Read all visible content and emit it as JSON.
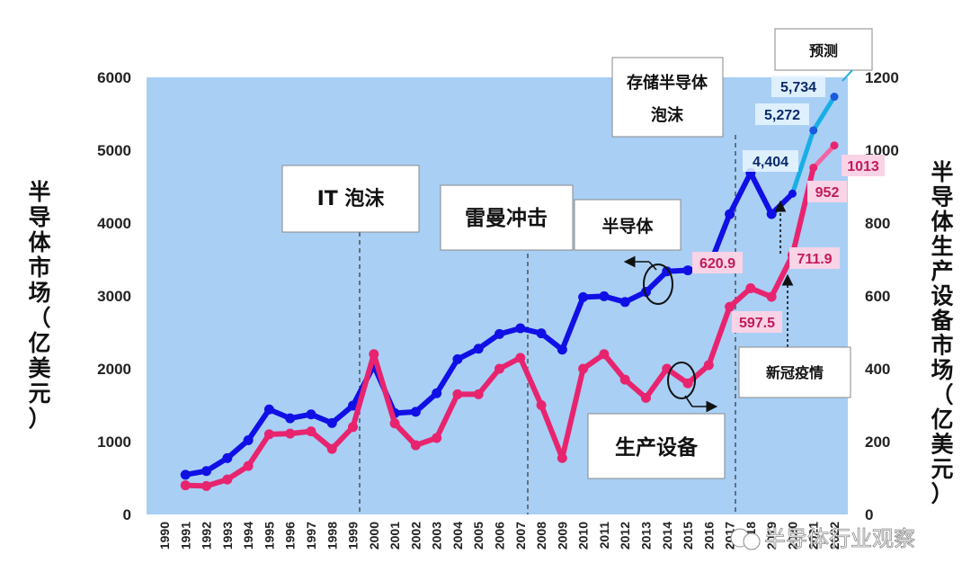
{
  "chart_data": {
    "type": "line",
    "x": [
      1991,
      1992,
      1993,
      1994,
      1995,
      1996,
      1997,
      1998,
      1999,
      2000,
      2001,
      2002,
      2003,
      2004,
      2005,
      2006,
      2007,
      2008,
      2009,
      2010,
      2011,
      2012,
      2013,
      2014,
      2015,
      2016,
      2017,
      2018,
      2019,
      2020,
      2021,
      2022
    ],
    "x_tick_labels": [
      "1990",
      "1991",
      "1992",
      "1993",
      "1994",
      "1995",
      "1996",
      "1997",
      "1998",
      "1999",
      "2000",
      "2001",
      "2002",
      "2003",
      "2004",
      "2005",
      "2006",
      "2007",
      "2008",
      "2009",
      "2010",
      "2011",
      "2012",
      "2013",
      "2014",
      "2015",
      "2016",
      "2017",
      "2018",
      "2019",
      "2020",
      "2021",
      "2022"
    ],
    "series": [
      {
        "name": "半导体",
        "axis": "left",
        "color": "#1010e6",
        "values": [
          545,
          596,
          773,
          1019,
          1441,
          1320,
          1374,
          1255,
          1494,
          2044,
          1390,
          1409,
          1663,
          2131,
          2275,
          2477,
          2555,
          2486,
          2263,
          2983,
          2995,
          2916,
          3056,
          3336,
          3351,
          3389,
          4122,
          4688,
          4123,
          4404,
          5272,
          5734
        ],
        "forecast_from_index": 29,
        "forecast_color": "#19aee6"
      },
      {
        "name": "生产设备",
        "axis": "right",
        "color": "#e8246f",
        "values": [
          80,
          78,
          96,
          133,
          220,
          222,
          228,
          180,
          240,
          440,
          250,
          190,
          210,
          330,
          330,
          400,
          430,
          300,
          155,
          400,
          440,
          370,
          320,
          400,
          360,
          410,
          570,
          620.9,
          597.5,
          711.9,
          952,
          1013
        ],
        "forecast_from_index": 30,
        "forecast_color": "#f265a5"
      }
    ],
    "y_left": {
      "label": "半导体市场（亿美元）",
      "ticks": [
        "0",
        "1000",
        "2000",
        "3000",
        "4000",
        "5000",
        "6000"
      ],
      "ylim": [
        0,
        6000
      ]
    },
    "y_right": {
      "label": "半导体生产设备市场（亿美元）",
      "ticks": [
        "0",
        "200",
        "400",
        "600",
        "800",
        "1000",
        "1200"
      ],
      "ylim": [
        0,
        1200
      ]
    },
    "annotations": {
      "it_bubble": "IT 泡沫",
      "lehman_shock": "雷曼冲击",
      "semiconductor": "半导体",
      "memory_bubble_line1": "存储半导体",
      "memory_bubble_line2": "泡沫",
      "forecast": "预测",
      "covid": "新冠疫情",
      "equipment": "生产设备"
    },
    "data_labels": {
      "semi_2020": "4,404",
      "semi_2021": "5,272",
      "semi_2022": "5,734",
      "equip_2018": "620.9",
      "equip_2019": "597.5",
      "equip_2020": "711.9",
      "equip_2021": "952",
      "equip_2022": "1013"
    },
    "watermark": "半导体行业观察",
    "plot_background": "#a9cff5"
  }
}
